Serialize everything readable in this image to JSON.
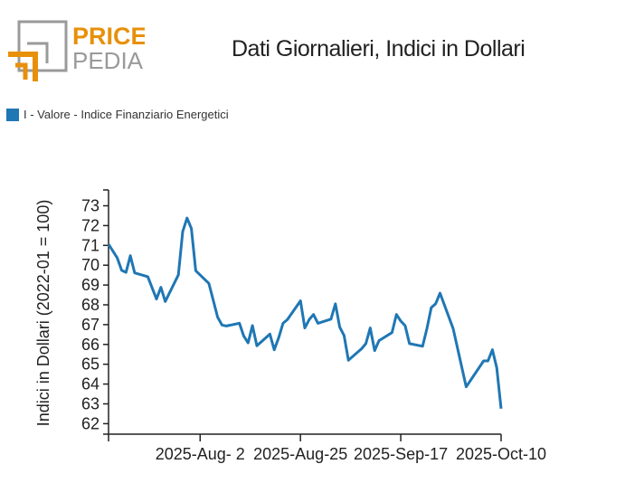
{
  "logo": {
    "line1": "PRICE",
    "line2": "PEDIA"
  },
  "chart_data": {
    "type": "line",
    "title": "Dati Giornalieri, Indici in Dollari",
    "xlabel": "",
    "ylabel": "Indici in Dollari (2022-01 = 100)",
    "ylim": [
      61.5,
      73.8
    ],
    "yticks": [
      62,
      63,
      64,
      65,
      66,
      67,
      68,
      69,
      70,
      71,
      72,
      73
    ],
    "xticks": [
      {
        "date": "2025-08-02",
        "label": "2025-Aug- 2"
      },
      {
        "date": "2025-08-25",
        "label": "2025-Aug-25"
      },
      {
        "date": "2025-09-17",
        "label": "2025-Sep-17"
      },
      {
        "date": "2025-10-10",
        "label": "2025-Oct-10"
      }
    ],
    "xlim": [
      "2025-07-12",
      "2025-10-10"
    ],
    "legend_position": "top-left",
    "series": [
      {
        "name": "I - Valore - Indice Finanziario Energetici",
        "color": "#1f77b4",
        "x": [
          "2025-07-12",
          "2025-07-14",
          "2025-07-15",
          "2025-07-16",
          "2025-07-17",
          "2025-07-18",
          "2025-07-21",
          "2025-07-23",
          "2025-07-24",
          "2025-07-25",
          "2025-07-28",
          "2025-07-29",
          "2025-07-30",
          "2025-07-31",
          "2025-08-01",
          "2025-08-04",
          "2025-08-06",
          "2025-08-07",
          "2025-08-08",
          "2025-08-11",
          "2025-08-12",
          "2025-08-13",
          "2025-08-14",
          "2025-08-15",
          "2025-08-18",
          "2025-08-19",
          "2025-08-20",
          "2025-08-21",
          "2025-08-22",
          "2025-08-25",
          "2025-08-26",
          "2025-08-27",
          "2025-08-28",
          "2025-08-29",
          "2025-09-01",
          "2025-09-02",
          "2025-09-03",
          "2025-09-04",
          "2025-09-05",
          "2025-09-08",
          "2025-09-09",
          "2025-09-10",
          "2025-09-11",
          "2025-09-12",
          "2025-09-15",
          "2025-09-16",
          "2025-09-17",
          "2025-09-18",
          "2025-09-19",
          "2025-09-22",
          "2025-09-23",
          "2025-09-24",
          "2025-09-25",
          "2025-09-26",
          "2025-09-29",
          "2025-10-02",
          "2025-10-06",
          "2025-10-07",
          "2025-10-08",
          "2025-10-09",
          "2025-10-10"
        ],
        "values": [
          71.06,
          70.37,
          69.74,
          69.64,
          70.48,
          69.61,
          69.42,
          68.29,
          68.88,
          68.17,
          69.51,
          71.7,
          72.38,
          71.85,
          69.72,
          69.08,
          67.38,
          66.98,
          66.93,
          67.07,
          66.42,
          66.08,
          66.95,
          65.93,
          66.52,
          65.73,
          66.34,
          67.07,
          67.25,
          68.2,
          66.83,
          67.25,
          67.51,
          67.07,
          67.28,
          68.05,
          66.87,
          66.45,
          65.2,
          65.78,
          66.04,
          66.83,
          65.69,
          66.19,
          66.6,
          67.51,
          67.18,
          66.95,
          66.04,
          65.91,
          66.8,
          67.86,
          68.06,
          68.59,
          66.8,
          63.86,
          65.17,
          65.17,
          65.73,
          64.82,
          62.76
        ]
      }
    ]
  }
}
